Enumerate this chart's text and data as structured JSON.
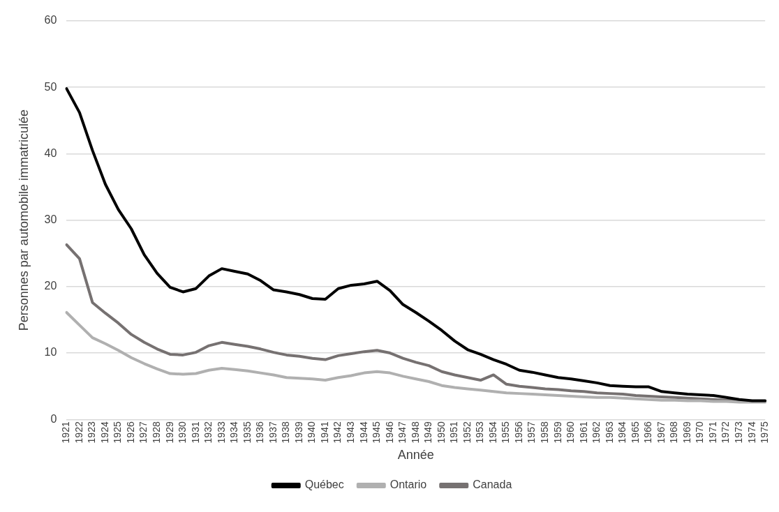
{
  "chart_data": {
    "type": "line",
    "xlabel": "Année",
    "ylabel": "Personnes par automobile immatriculée",
    "categories": [
      "1921",
      "1922",
      "1923",
      "1924",
      "1925",
      "1926",
      "1927",
      "1928",
      "1929",
      "1930",
      "1931",
      "1932",
      "1933",
      "1934",
      "1935",
      "1936",
      "1937",
      "1938",
      "1939",
      "1940",
      "1941",
      "1942",
      "1943",
      "1944",
      "1945",
      "1946",
      "1947",
      "1948",
      "1949",
      "1950",
      "1951",
      "1952",
      "1953",
      "1954",
      "1955",
      "1956",
      "1957",
      "1958",
      "1959",
      "1960",
      "1961",
      "1962",
      "1963",
      "1964",
      "1965",
      "1966",
      "1967",
      "1968",
      "1969",
      "1970",
      "1971",
      "1972",
      "1973",
      "1974",
      "1975"
    ],
    "series": [
      {
        "name": "Québec",
        "color": "#000000",
        "values": [
          49.8,
          46.2,
          40.5,
          35.4,
          31.6,
          28.7,
          24.8,
          22.0,
          19.9,
          19.2,
          19.7,
          21.6,
          22.7,
          22.3,
          21.9,
          20.9,
          19.5,
          19.2,
          18.8,
          18.2,
          18.1,
          19.7,
          20.2,
          20.4,
          20.8,
          19.4,
          17.3,
          16.1,
          14.8,
          13.4,
          11.8,
          10.5,
          9.8,
          9.0,
          8.3,
          7.4,
          7.1,
          6.7,
          6.3,
          6.1,
          5.8,
          5.5,
          5.1,
          5.0,
          4.9,
          4.9,
          4.2,
          4.0,
          3.8,
          3.7,
          3.6,
          3.3,
          3.0,
          2.8,
          2.8
        ]
      },
      {
        "name": "Ontario",
        "color": "#b0b0b0",
        "values": [
          16.1,
          14.2,
          12.3,
          11.4,
          10.4,
          9.3,
          8.4,
          7.6,
          6.9,
          6.8,
          6.9,
          7.4,
          7.7,
          7.5,
          7.3,
          7.0,
          6.7,
          6.3,
          6.2,
          6.1,
          5.9,
          6.3,
          6.6,
          7.0,
          7.2,
          7.0,
          6.5,
          6.1,
          5.7,
          5.1,
          4.8,
          4.6,
          4.4,
          4.2,
          4.0,
          3.9,
          3.8,
          3.7,
          3.6,
          3.5,
          3.4,
          3.3,
          3.3,
          3.2,
          3.1,
          3.0,
          2.9,
          2.9,
          2.8,
          2.8,
          2.7,
          2.7,
          2.6,
          2.6,
          2.6
        ]
      },
      {
        "name": "Canada",
        "color": "#767171",
        "values": [
          26.3,
          24.2,
          17.6,
          16.0,
          14.5,
          12.8,
          11.6,
          10.6,
          9.8,
          9.7,
          10.1,
          11.1,
          11.6,
          11.3,
          11.0,
          10.6,
          10.1,
          9.7,
          9.5,
          9.2,
          9.0,
          9.6,
          9.9,
          10.2,
          10.4,
          10.0,
          9.2,
          8.6,
          8.1,
          7.2,
          6.7,
          6.3,
          5.9,
          6.7,
          5.3,
          5.0,
          4.8,
          4.6,
          4.5,
          4.3,
          4.2,
          4.0,
          3.9,
          3.8,
          3.6,
          3.5,
          3.4,
          3.3,
          3.2,
          3.1,
          3.0,
          2.9,
          2.8,
          2.7,
          2.7
        ]
      }
    ],
    "ylim": [
      0,
      60
    ],
    "yticks": [
      0,
      10,
      20,
      30,
      40,
      50,
      60
    ],
    "grid": "y",
    "legend": "bottom",
    "marker": "none",
    "line_style": "solid"
  }
}
